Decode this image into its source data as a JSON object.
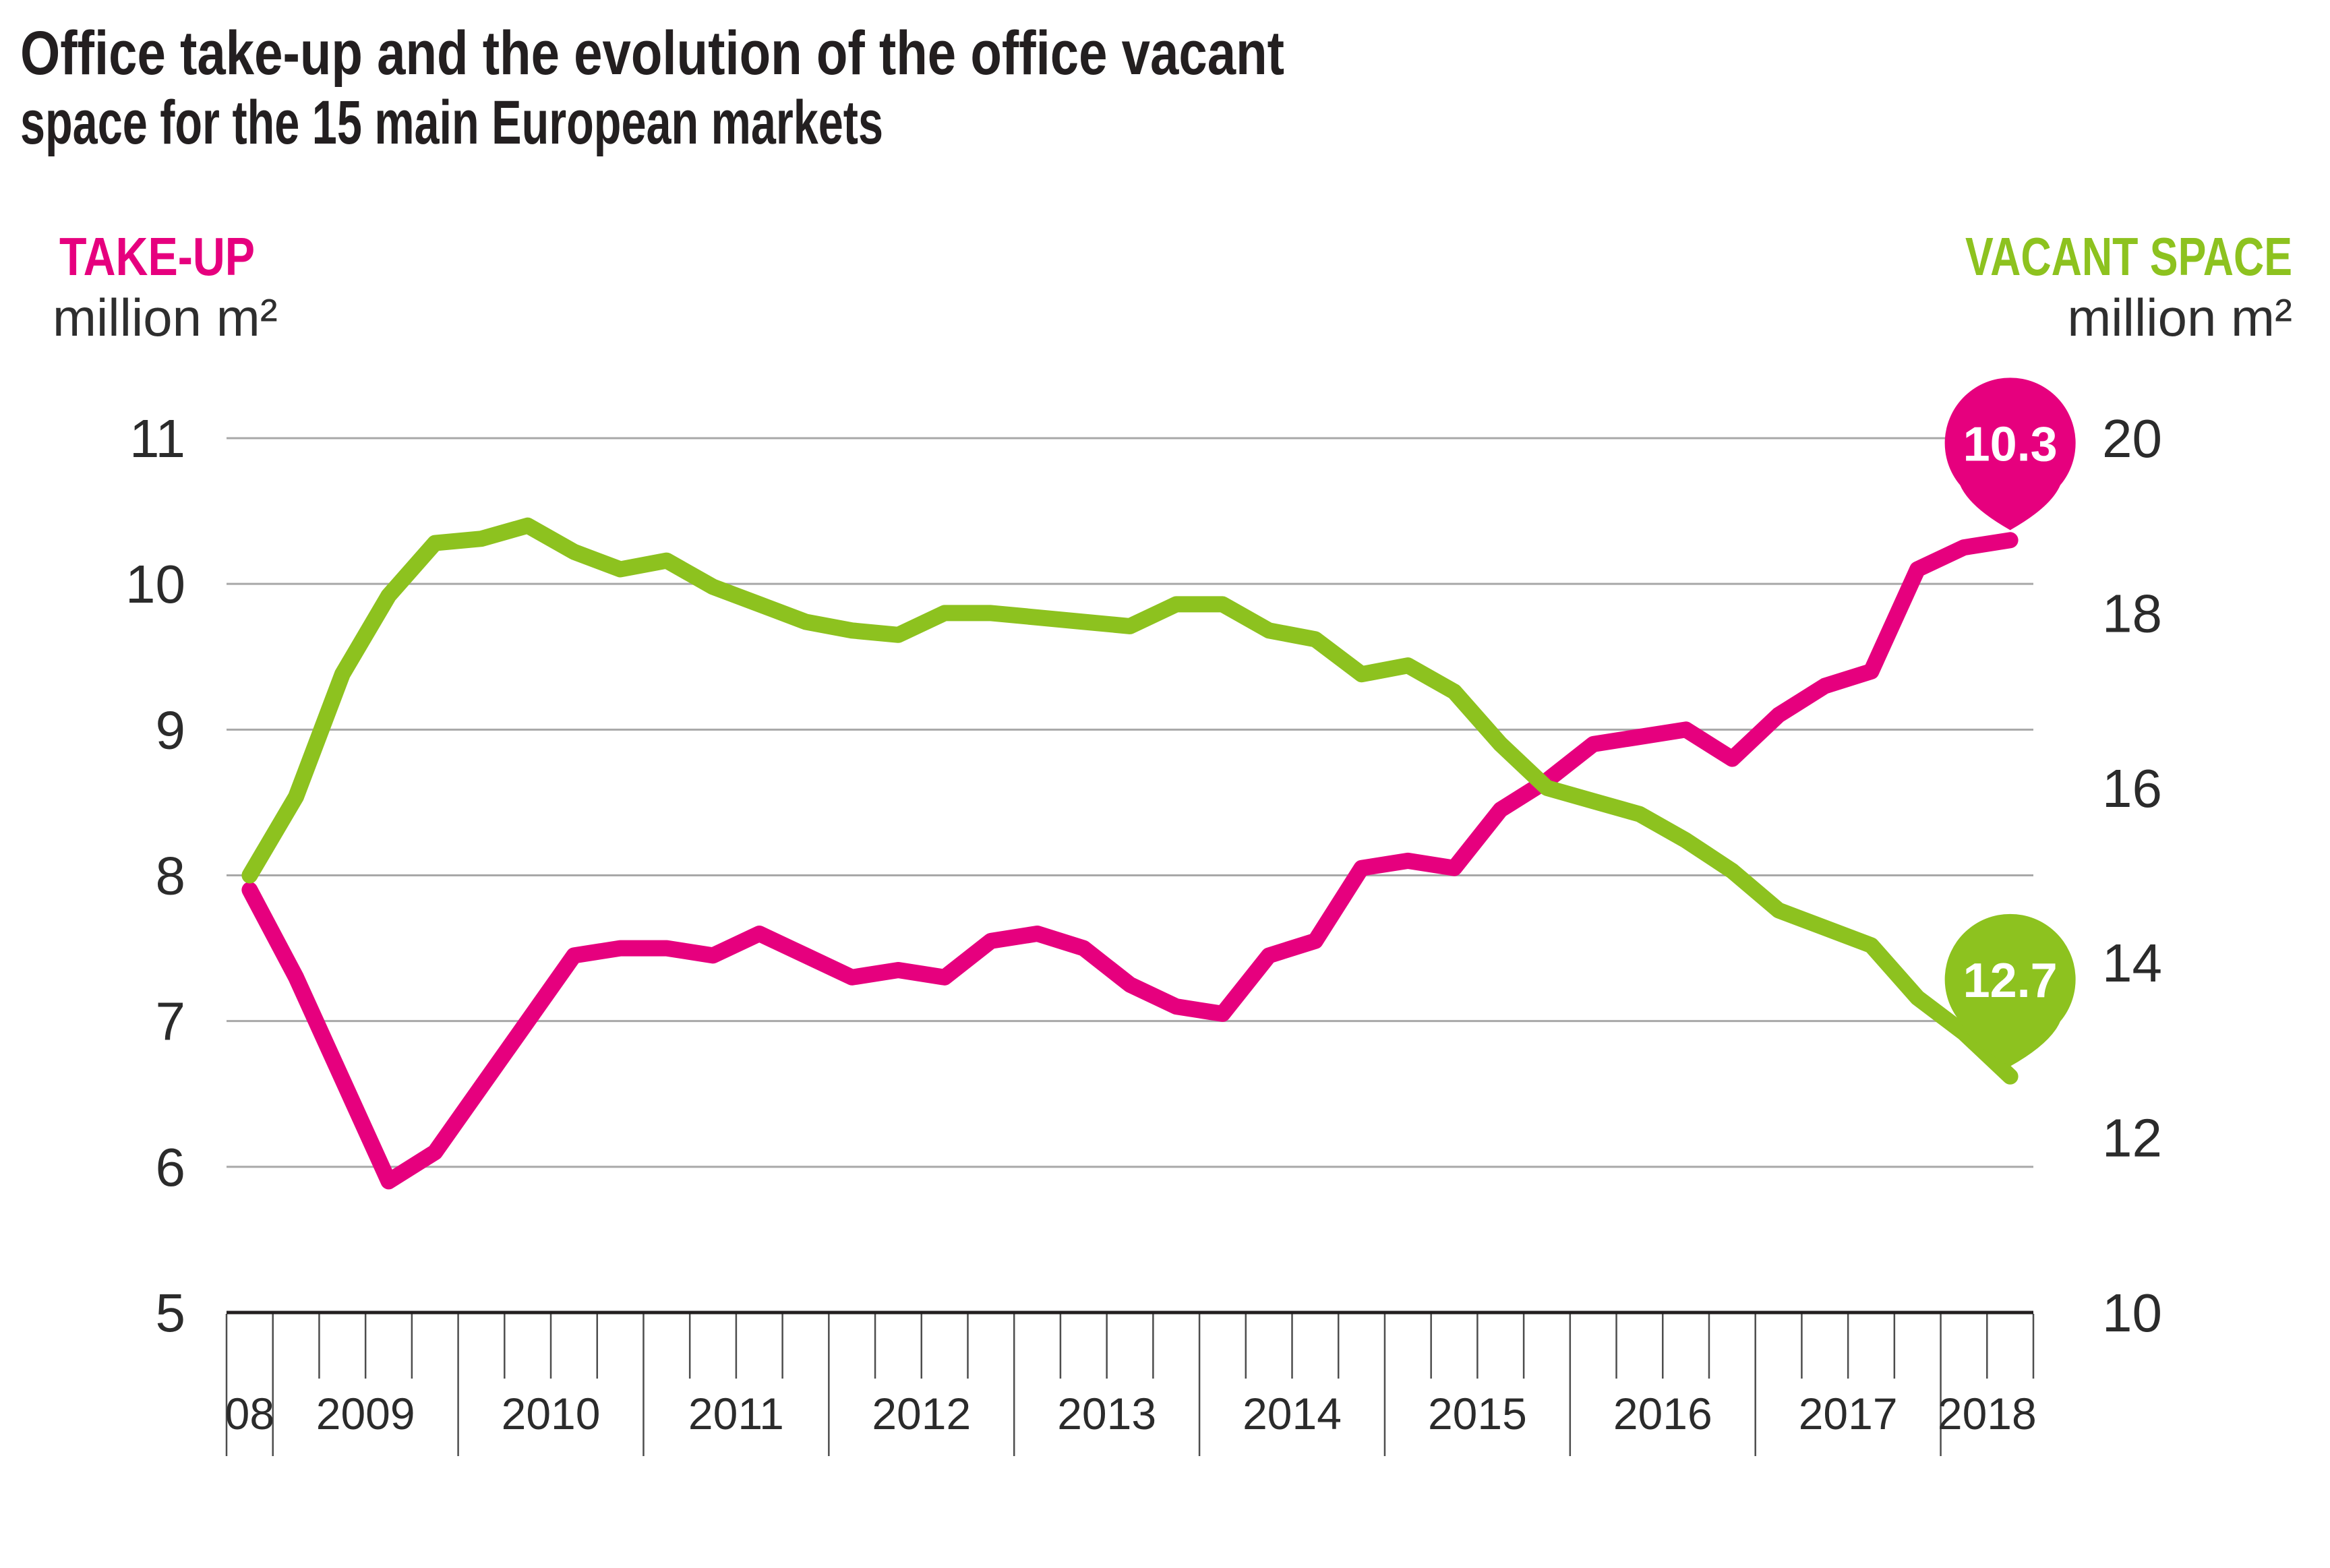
{
  "title": {
    "line1": "Office take-up and the evolution of the office vacant",
    "line2": "space for the 15 main European markets"
  },
  "legend_left": {
    "label": "TAKE-UP",
    "unit": "million m²"
  },
  "legend_right": {
    "label": "VACANT SPACE",
    "unit": "million m²"
  },
  "colors": {
    "take_up_pink": "#e6007e",
    "vacant_green": "#8dc21f",
    "text_dark": "#231f20",
    "gridline_gray": "#a8a8a8",
    "tick_gray": "#4d4d4d",
    "axis_black": "#231f20",
    "badge_text_white": "#ffffff"
  },
  "chart_data": {
    "type": "line",
    "title": "Office take-up and the evolution of the office vacant space for the 15 main European markets",
    "x_frequency": "quarterly",
    "categories": [
      "2008 Q4",
      "2009 Q1",
      "2009 Q2",
      "2009 Q3",
      "2009 Q4",
      "2010 Q1",
      "2010 Q2",
      "2010 Q3",
      "2010 Q4",
      "2011 Q1",
      "2011 Q2",
      "2011 Q3",
      "2011 Q4",
      "2012 Q1",
      "2012 Q2",
      "2012 Q3",
      "2012 Q4",
      "2013 Q1",
      "2013 Q2",
      "2013 Q3",
      "2013 Q4",
      "2014 Q1",
      "2014 Q2",
      "2014 Q3",
      "2014 Q4",
      "2015 Q1",
      "2015 Q2",
      "2015 Q3",
      "2015 Q4",
      "2016 Q1",
      "2016 Q2",
      "2016 Q3",
      "2016 Q4",
      "2017 Q1",
      "2017 Q2",
      "2017 Q3",
      "2017 Q4",
      "2018 Q1",
      "2018 Q2"
    ],
    "x_year_labels": [
      "08",
      "2009",
      "2010",
      "2011",
      "2012",
      "2013",
      "2014",
      "2015",
      "2016",
      "2017",
      "2018"
    ],
    "quarters_per_year_label": [
      1,
      4,
      4,
      4,
      4,
      4,
      4,
      4,
      4,
      4,
      2
    ],
    "left_axis": {
      "label": "TAKE-UP million m²",
      "ticks": [
        5,
        6,
        7,
        8,
        9,
        10,
        11
      ],
      "range": [
        5,
        11
      ]
    },
    "right_axis": {
      "label": "VACANT SPACE million m²",
      "ticks": [
        10,
        12,
        14,
        16,
        18,
        20
      ],
      "range": [
        10,
        20
      ]
    },
    "grid": "horizontal",
    "series": [
      {
        "name": "TAKE-UP",
        "axis": "left",
        "color": "#e6007e",
        "end_label": "10.3",
        "values": [
          7.9,
          7.3,
          6.6,
          5.9,
          6.1,
          6.55,
          7.0,
          7.45,
          7.5,
          7.5,
          7.45,
          7.6,
          7.45,
          7.3,
          7.35,
          7.3,
          7.55,
          7.6,
          7.5,
          7.25,
          7.1,
          7.05,
          7.45,
          7.55,
          8.05,
          8.1,
          8.05,
          8.45,
          8.65,
          8.9,
          8.95,
          9.0,
          8.8,
          9.1,
          9.3,
          9.4,
          10.1,
          10.25,
          10.3
        ]
      },
      {
        "name": "VACANT SPACE",
        "axis": "right",
        "color": "#8dc21f",
        "end_label": "12.7",
        "values": [
          15.0,
          15.9,
          17.3,
          18.2,
          18.8,
          18.85,
          19.0,
          18.7,
          18.5,
          18.6,
          18.3,
          18.1,
          17.9,
          17.8,
          17.75,
          18.0,
          18.0,
          17.95,
          17.9,
          17.85,
          18.1,
          18.1,
          17.8,
          17.7,
          17.3,
          17.4,
          17.1,
          16.5,
          16.0,
          15.85,
          15.7,
          15.4,
          15.05,
          14.6,
          14.4,
          14.2,
          13.6,
          13.2,
          12.7
        ]
      }
    ]
  }
}
